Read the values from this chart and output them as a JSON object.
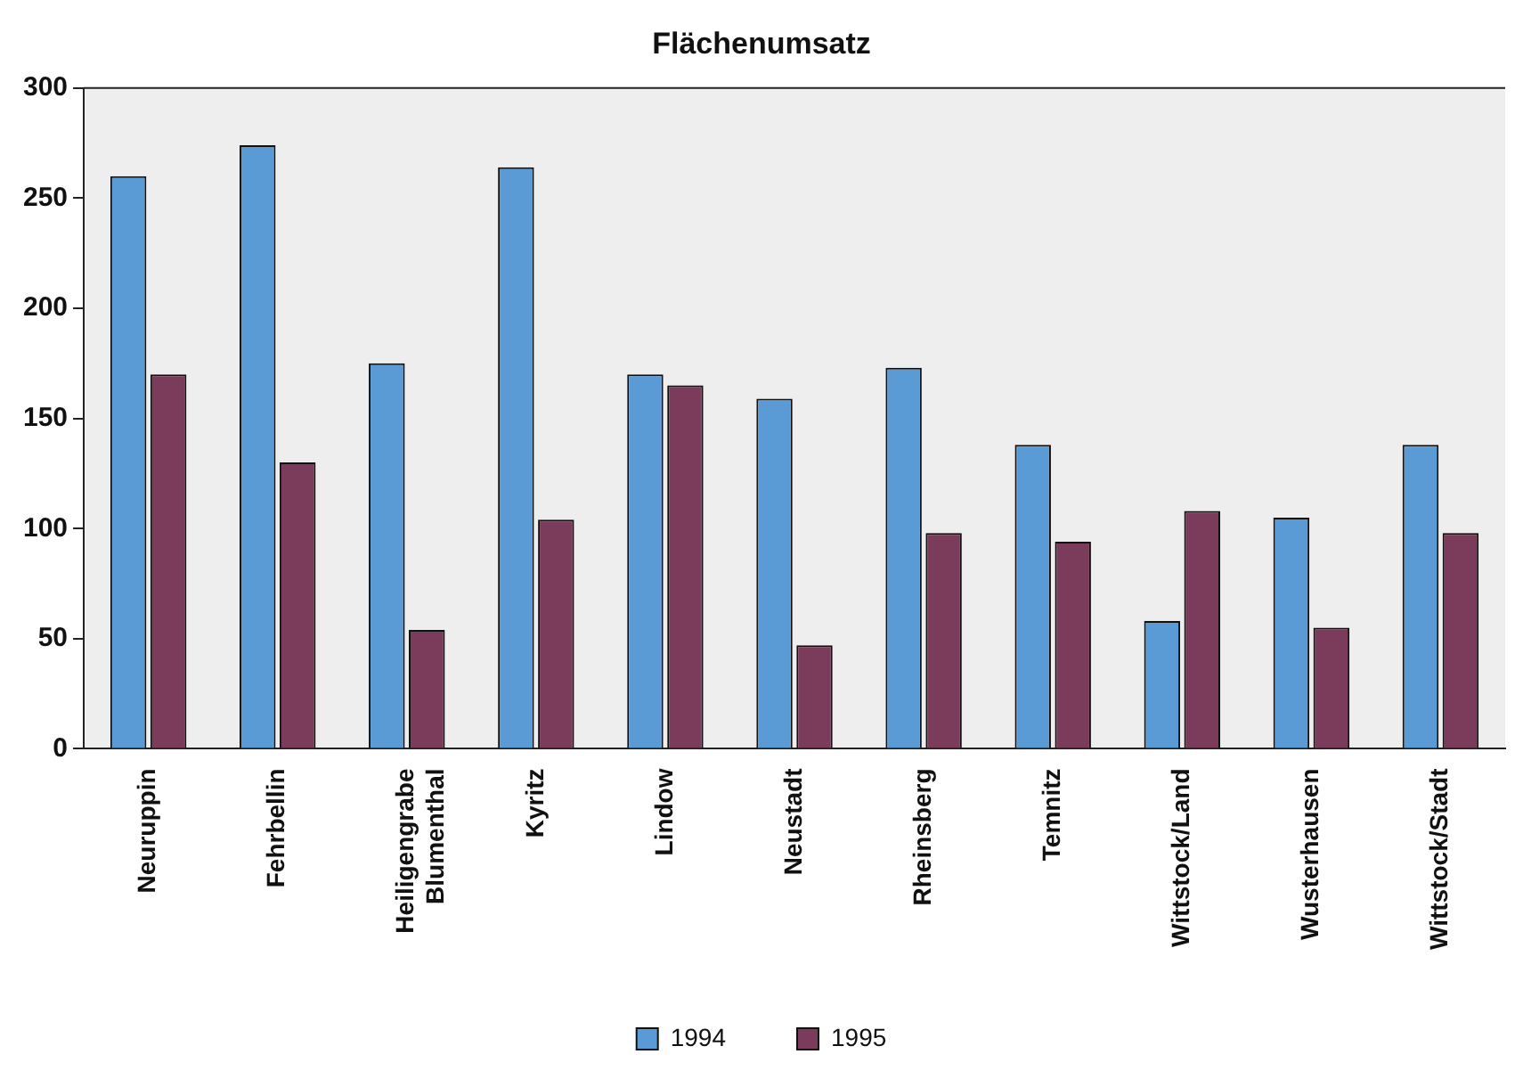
{
  "chart_data": {
    "type": "bar",
    "title": "Flächenumsatz",
    "categories": [
      "Neuruppin",
      "Fehrbellin",
      "Heiligengrabe Blumenthal",
      "Kyritz",
      "Lindow",
      "Neustadt",
      "Rheinsberg",
      "Temnitz",
      "Wittstock/Land",
      "Wusterhausen",
      "Wittstock/Stadt"
    ],
    "series": [
      {
        "name": "1994",
        "color": "#5b9bd5",
        "values": [
          260,
          274,
          175,
          264,
          170,
          159,
          173,
          138,
          58,
          105,
          138
        ]
      },
      {
        "name": "1995",
        "color": "#7b3b5a",
        "values": [
          170,
          130,
          54,
          104,
          165,
          47,
          98,
          94,
          108,
          55,
          98
        ]
      }
    ],
    "ylim": [
      0,
      300
    ],
    "yticks": [
      0,
      50,
      100,
      150,
      200,
      250,
      300
    ],
    "grid": false,
    "legend": "bottom"
  }
}
